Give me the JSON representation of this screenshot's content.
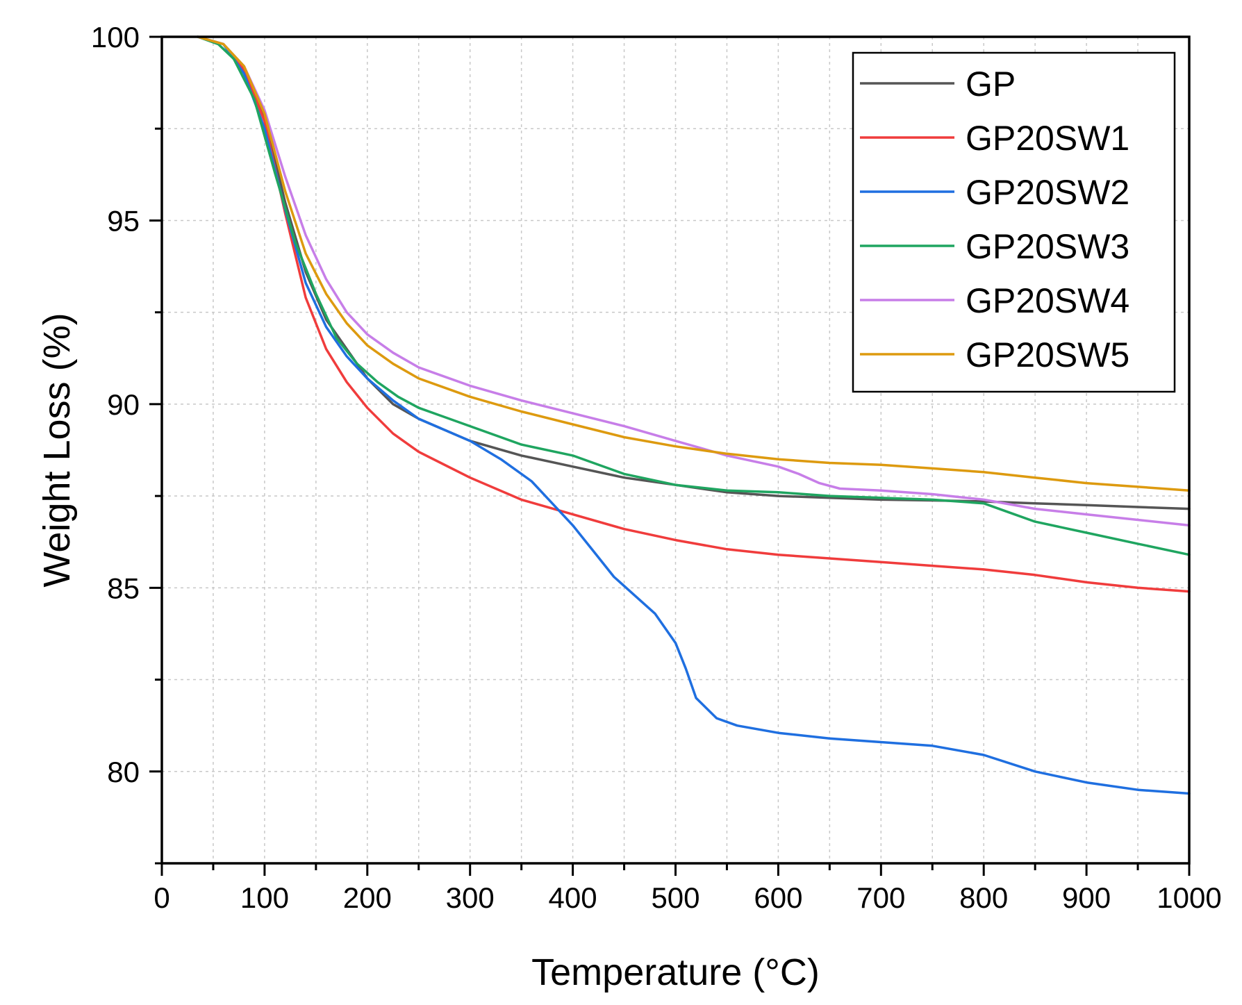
{
  "chart_data": {
    "type": "line",
    "xlabel": "Temperature (°C)",
    "ylabel": "Weight Loss (%)",
    "xlim": [
      0,
      1000
    ],
    "ylim": [
      77.5,
      100
    ],
    "xticks": [
      0,
      100,
      200,
      300,
      400,
      500,
      600,
      700,
      800,
      900,
      1000
    ],
    "yticks": [
      80,
      85,
      90,
      95,
      100
    ],
    "xtick_labels": [
      "0",
      "100",
      "200",
      "300",
      "400",
      "500",
      "600",
      "700",
      "800",
      "900",
      "1000"
    ],
    "ytick_labels": [
      "80",
      "85",
      "90",
      "95",
      "100"
    ],
    "grid": true,
    "legend_position": "top-right",
    "series": [
      {
        "name": "GP",
        "color": "#555555",
        "x": [
          35,
          60,
          80,
          100,
          120,
          140,
          160,
          180,
          200,
          225,
          250,
          300,
          350,
          400,
          450,
          500,
          550,
          600,
          650,
          700,
          750,
          800,
          850,
          900,
          950,
          1000
        ],
        "y": [
          100,
          99.8,
          99.1,
          97.8,
          95.5,
          93.6,
          92.3,
          91.5,
          90.7,
          90.0,
          89.6,
          89.0,
          88.6,
          88.3,
          88.0,
          87.8,
          87.6,
          87.5,
          87.45,
          87.4,
          87.38,
          87.35,
          87.3,
          87.25,
          87.2,
          87.15
        ]
      },
      {
        "name": "GP20SW1",
        "color": "#f03c3c",
        "x": [
          35,
          60,
          80,
          100,
          120,
          140,
          160,
          180,
          200,
          225,
          250,
          300,
          350,
          400,
          450,
          500,
          550,
          600,
          650,
          700,
          750,
          800,
          850,
          900,
          950,
          1000
        ],
        "y": [
          100,
          99.8,
          99.1,
          97.7,
          95.2,
          92.9,
          91.5,
          90.6,
          89.9,
          89.2,
          88.7,
          88.0,
          87.4,
          87.0,
          86.6,
          86.3,
          86.05,
          85.9,
          85.8,
          85.7,
          85.6,
          85.5,
          85.35,
          85.15,
          85.0,
          84.9
        ]
      },
      {
        "name": "GP20SW2",
        "color": "#1f6fe0",
        "x": [
          35,
          60,
          80,
          100,
          120,
          140,
          160,
          180,
          200,
          225,
          250,
          300,
          330,
          360,
          380,
          400,
          420,
          440,
          460,
          480,
          500,
          510,
          520,
          540,
          560,
          600,
          650,
          700,
          750,
          800,
          850,
          900,
          950,
          1000
        ],
        "y": [
          100,
          99.8,
          99.0,
          97.5,
          95.3,
          93.3,
          92.1,
          91.3,
          90.7,
          90.1,
          89.6,
          89.0,
          88.5,
          87.9,
          87.3,
          86.7,
          86.0,
          85.3,
          84.8,
          84.3,
          83.5,
          82.8,
          82.0,
          81.45,
          81.25,
          81.05,
          80.9,
          80.8,
          80.7,
          80.45,
          80.0,
          79.7,
          79.5,
          79.4
        ]
      },
      {
        "name": "GP20SW3",
        "color": "#1fa560",
        "x": [
          35,
          55,
          70,
          90,
          110,
          130,
          150,
          170,
          190,
          210,
          230,
          250,
          300,
          350,
          400,
          450,
          500,
          550,
          600,
          650,
          700,
          750,
          800,
          820,
          850,
          900,
          950,
          1000
        ],
        "y": [
          100,
          99.8,
          99.4,
          98.3,
          96.3,
          94.4,
          93.0,
          91.8,
          91.1,
          90.6,
          90.2,
          89.9,
          89.4,
          88.9,
          88.6,
          88.1,
          87.8,
          87.65,
          87.6,
          87.5,
          87.45,
          87.4,
          87.3,
          87.1,
          86.8,
          86.5,
          86.2,
          85.9
        ]
      },
      {
        "name": "GP20SW4",
        "color": "#c77ee8",
        "x": [
          35,
          60,
          80,
          100,
          120,
          140,
          160,
          180,
          200,
          225,
          250,
          300,
          350,
          400,
          450,
          500,
          550,
          600,
          620,
          640,
          660,
          700,
          750,
          800,
          850,
          900,
          950,
          1000
        ],
        "y": [
          100,
          99.8,
          99.2,
          98.0,
          96.2,
          94.6,
          93.4,
          92.5,
          91.9,
          91.4,
          91.0,
          90.5,
          90.1,
          89.75,
          89.4,
          89.0,
          88.6,
          88.3,
          88.1,
          87.85,
          87.7,
          87.65,
          87.55,
          87.4,
          87.15,
          87.0,
          86.85,
          86.7
        ]
      },
      {
        "name": "GP20SW5",
        "color": "#dd9a0f",
        "x": [
          35,
          60,
          80,
          100,
          120,
          140,
          160,
          180,
          200,
          225,
          250,
          300,
          350,
          400,
          450,
          500,
          550,
          600,
          650,
          700,
          750,
          800,
          850,
          900,
          950,
          1000
        ],
        "y": [
          100,
          99.8,
          99.2,
          97.9,
          95.8,
          94.1,
          93.0,
          92.2,
          91.6,
          91.1,
          90.7,
          90.2,
          89.8,
          89.45,
          89.1,
          88.85,
          88.65,
          88.5,
          88.4,
          88.35,
          88.25,
          88.15,
          88.0,
          87.85,
          87.75,
          87.65
        ]
      }
    ]
  }
}
